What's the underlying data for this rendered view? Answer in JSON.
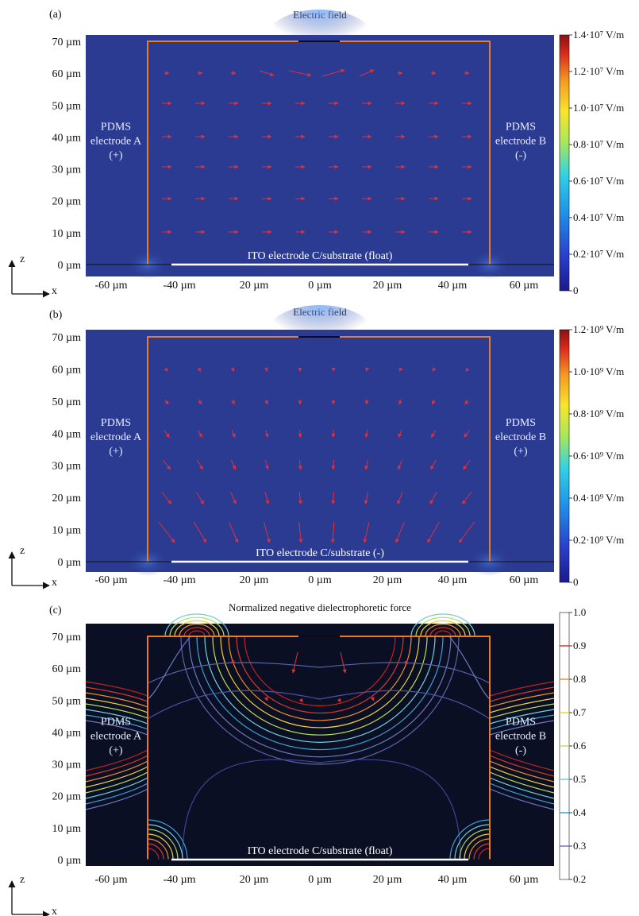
{
  "panels": [
    {
      "id": "a",
      "letter": "(a)",
      "title": "Electric field",
      "yticks": [
        "70 µm",
        "60 µm",
        "50 µm",
        "40 µm",
        "30 µm",
        "20 µm",
        "10 µm",
        "0 µm"
      ],
      "xticks": [
        "-60 µm",
        "-40 µm",
        "20 µm",
        "0 µm",
        "20 µm",
        "40 µm",
        "60 µm"
      ],
      "left_label": [
        "PDMS",
        "electrode A",
        "(+)"
      ],
      "right_label": [
        "PDMS",
        "electrode B",
        "(-)"
      ],
      "bottom_label": "ITO electrode C/substrate (float)",
      "colorbar": {
        "labels": [
          "1.4·10⁷ V/m",
          "1.2·10⁷ V/m",
          "1.0·10⁷ V/m",
          "0.8·10⁷ V/m",
          "0.6·10⁷ V/m",
          "0.4·10⁷ V/m",
          "0.2·10⁷ V/m",
          "0"
        ],
        "colormap": "jet"
      }
    },
    {
      "id": "b",
      "letter": "(b)",
      "title": "Electric field",
      "yticks": [
        "70 µm",
        "60 µm",
        "50 µm",
        "40 µm",
        "30 µm",
        "20 µm",
        "10 µm",
        "0 µm"
      ],
      "xticks": [
        "-60 µm",
        "-40 µm",
        "20 µm",
        "0 µm",
        "20 µm",
        "40 µm",
        "60 µm"
      ],
      "left_label": [
        "PDMS",
        "electrode A",
        "(+)"
      ],
      "right_label": [
        "PDMS",
        "electrode B",
        "(+)"
      ],
      "bottom_label": "ITO electrode C/substrate (-)",
      "colorbar": {
        "labels": [
          "1.2·10⁹ V/m",
          "1.0·10⁹ V/m",
          "0.8·10⁹ V/m",
          "0.6·10⁹ V/m",
          "0.4·10⁹ V/m",
          "0.2·10⁹ V/m",
          "0"
        ],
        "colormap": "jet"
      }
    },
    {
      "id": "c",
      "letter": "(c)",
      "title": "Normalized negative dielectrophoretic force",
      "yticks": [
        "70 µm",
        "60 µm",
        "50 µm",
        "40 µm",
        "30 µm",
        "20 µm",
        "10 µm",
        "0 µm"
      ],
      "xticks": [
        "-60 µm",
        "-40 µm",
        "20 µm",
        "0 µm",
        "20 µm",
        "40 µm",
        "60 µm"
      ],
      "left_label": [
        "PDMS",
        "electrode A",
        "(+)"
      ],
      "right_label": [
        "PDMS",
        "electrode B",
        "(-)"
      ],
      "bottom_label": "ITO electrode C/substrate (float)",
      "colorbar": {
        "labels": [
          "1.0",
          "0.9",
          "0.8",
          "0.7",
          "0.6",
          "0.5",
          "0.4",
          "0.3",
          "0.2"
        ],
        "colormap": "contour"
      }
    }
  ],
  "axis_labels": {
    "z": "z",
    "x": "x"
  },
  "colors": {
    "field_bg": "#2b3b92",
    "contour_bg": "#0b0f24",
    "electrode_outline": "#f07a1e",
    "arrow": "#e0303a",
    "ito": "#ffffff"
  },
  "chart_data": [
    {
      "type": "heatmap",
      "title": "Electric field",
      "xlim": [
        -70,
        70
      ],
      "ylim": [
        0,
        70
      ],
      "colorbar_range": [
        0,
        14000000
      ],
      "colorbar_unit": "V/m",
      "colormap": "jet"
    },
    {
      "type": "heatmap",
      "title": "Electric field",
      "xlim": [
        -70,
        70
      ],
      "ylim": [
        0,
        70
      ],
      "colorbar_range": [
        0,
        1200000000
      ],
      "colorbar_unit": "V/m",
      "colormap": "jet"
    },
    {
      "type": "heatmap",
      "title": "Normalized negative dielectrophoretic force",
      "xlim": [
        -70,
        70
      ],
      "ylim": [
        0,
        70
      ],
      "colorbar_range": [
        0.2,
        1.0
      ],
      "contour_levels": [
        0.2,
        0.3,
        0.4,
        0.5,
        0.6,
        0.7,
        0.8,
        0.9,
        1.0
      ]
    }
  ]
}
